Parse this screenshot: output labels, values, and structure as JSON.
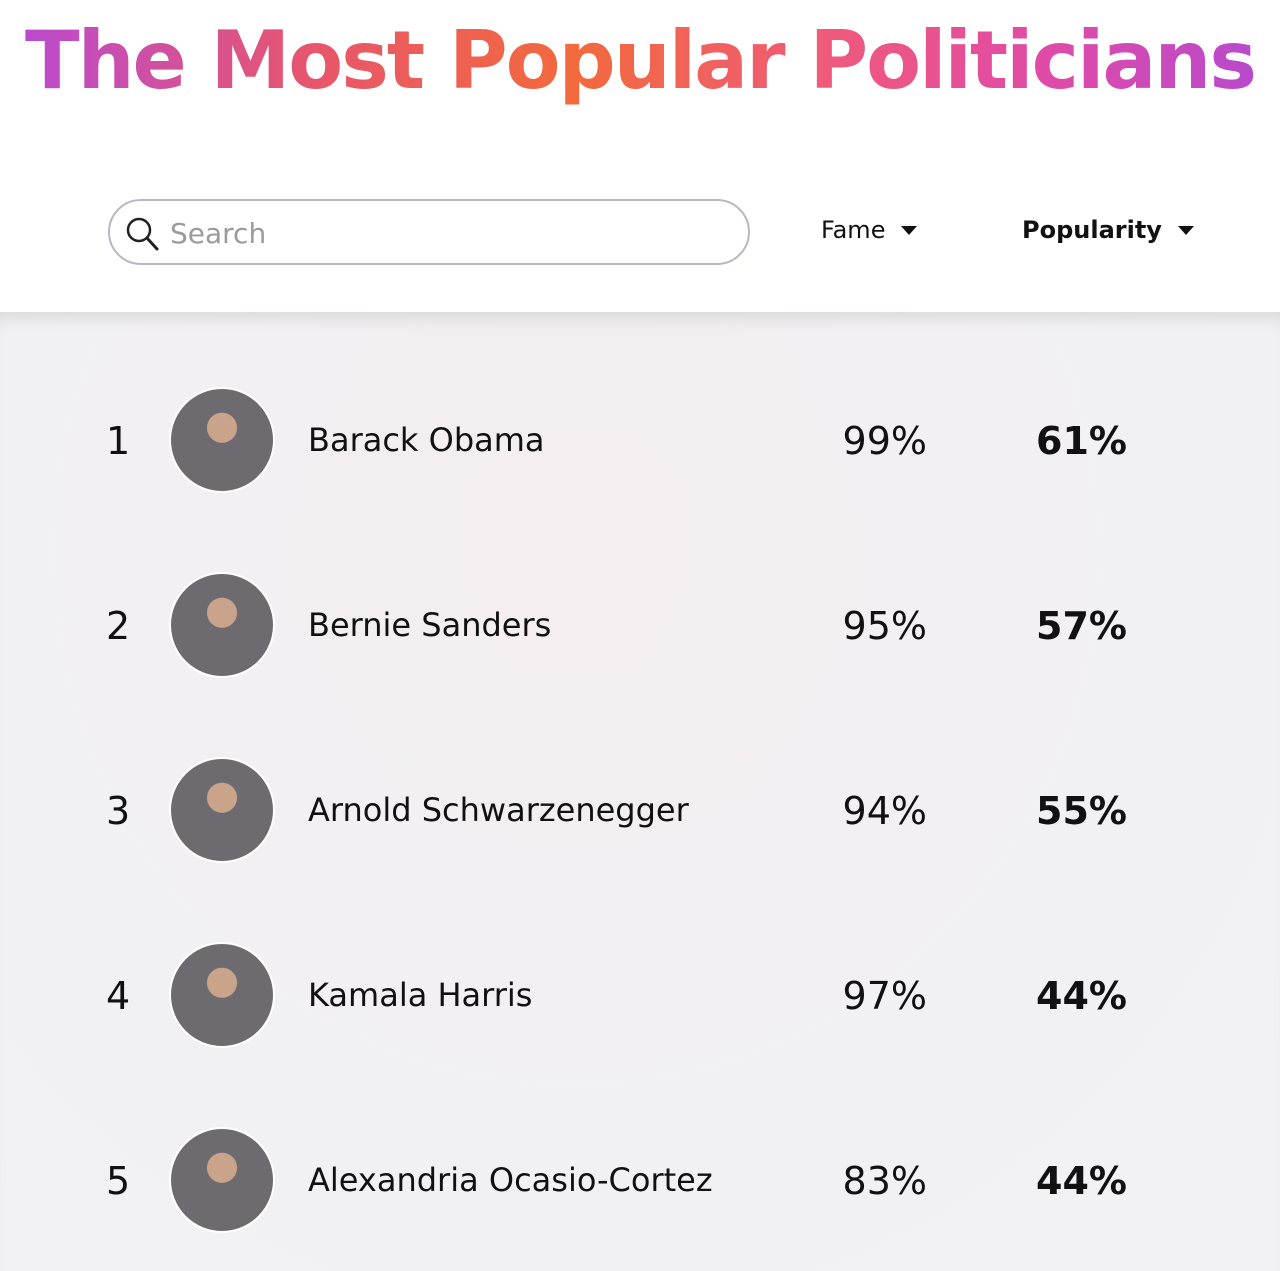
{
  "header": {
    "title": "The Most Popular Politicians"
  },
  "search": {
    "placeholder": "Search"
  },
  "columns": {
    "fame": "Fame",
    "popularity": "Popularity"
  },
  "rows": [
    {
      "rank": 1,
      "name": "Barack Obama",
      "fame": "99%",
      "popularity": "61%"
    },
    {
      "rank": 2,
      "name": "Bernie Sanders",
      "fame": "95%",
      "popularity": "57%"
    },
    {
      "rank": 3,
      "name": "Arnold Schwarzenegger",
      "fame": "94%",
      "popularity": "55%"
    },
    {
      "rank": 4,
      "name": "Kamala Harris",
      "fame": "97%",
      "popularity": "44%"
    },
    {
      "rank": 5,
      "name": "Alexandria Ocasio-Cortez",
      "fame": "83%",
      "popularity": "44%"
    }
  ]
}
